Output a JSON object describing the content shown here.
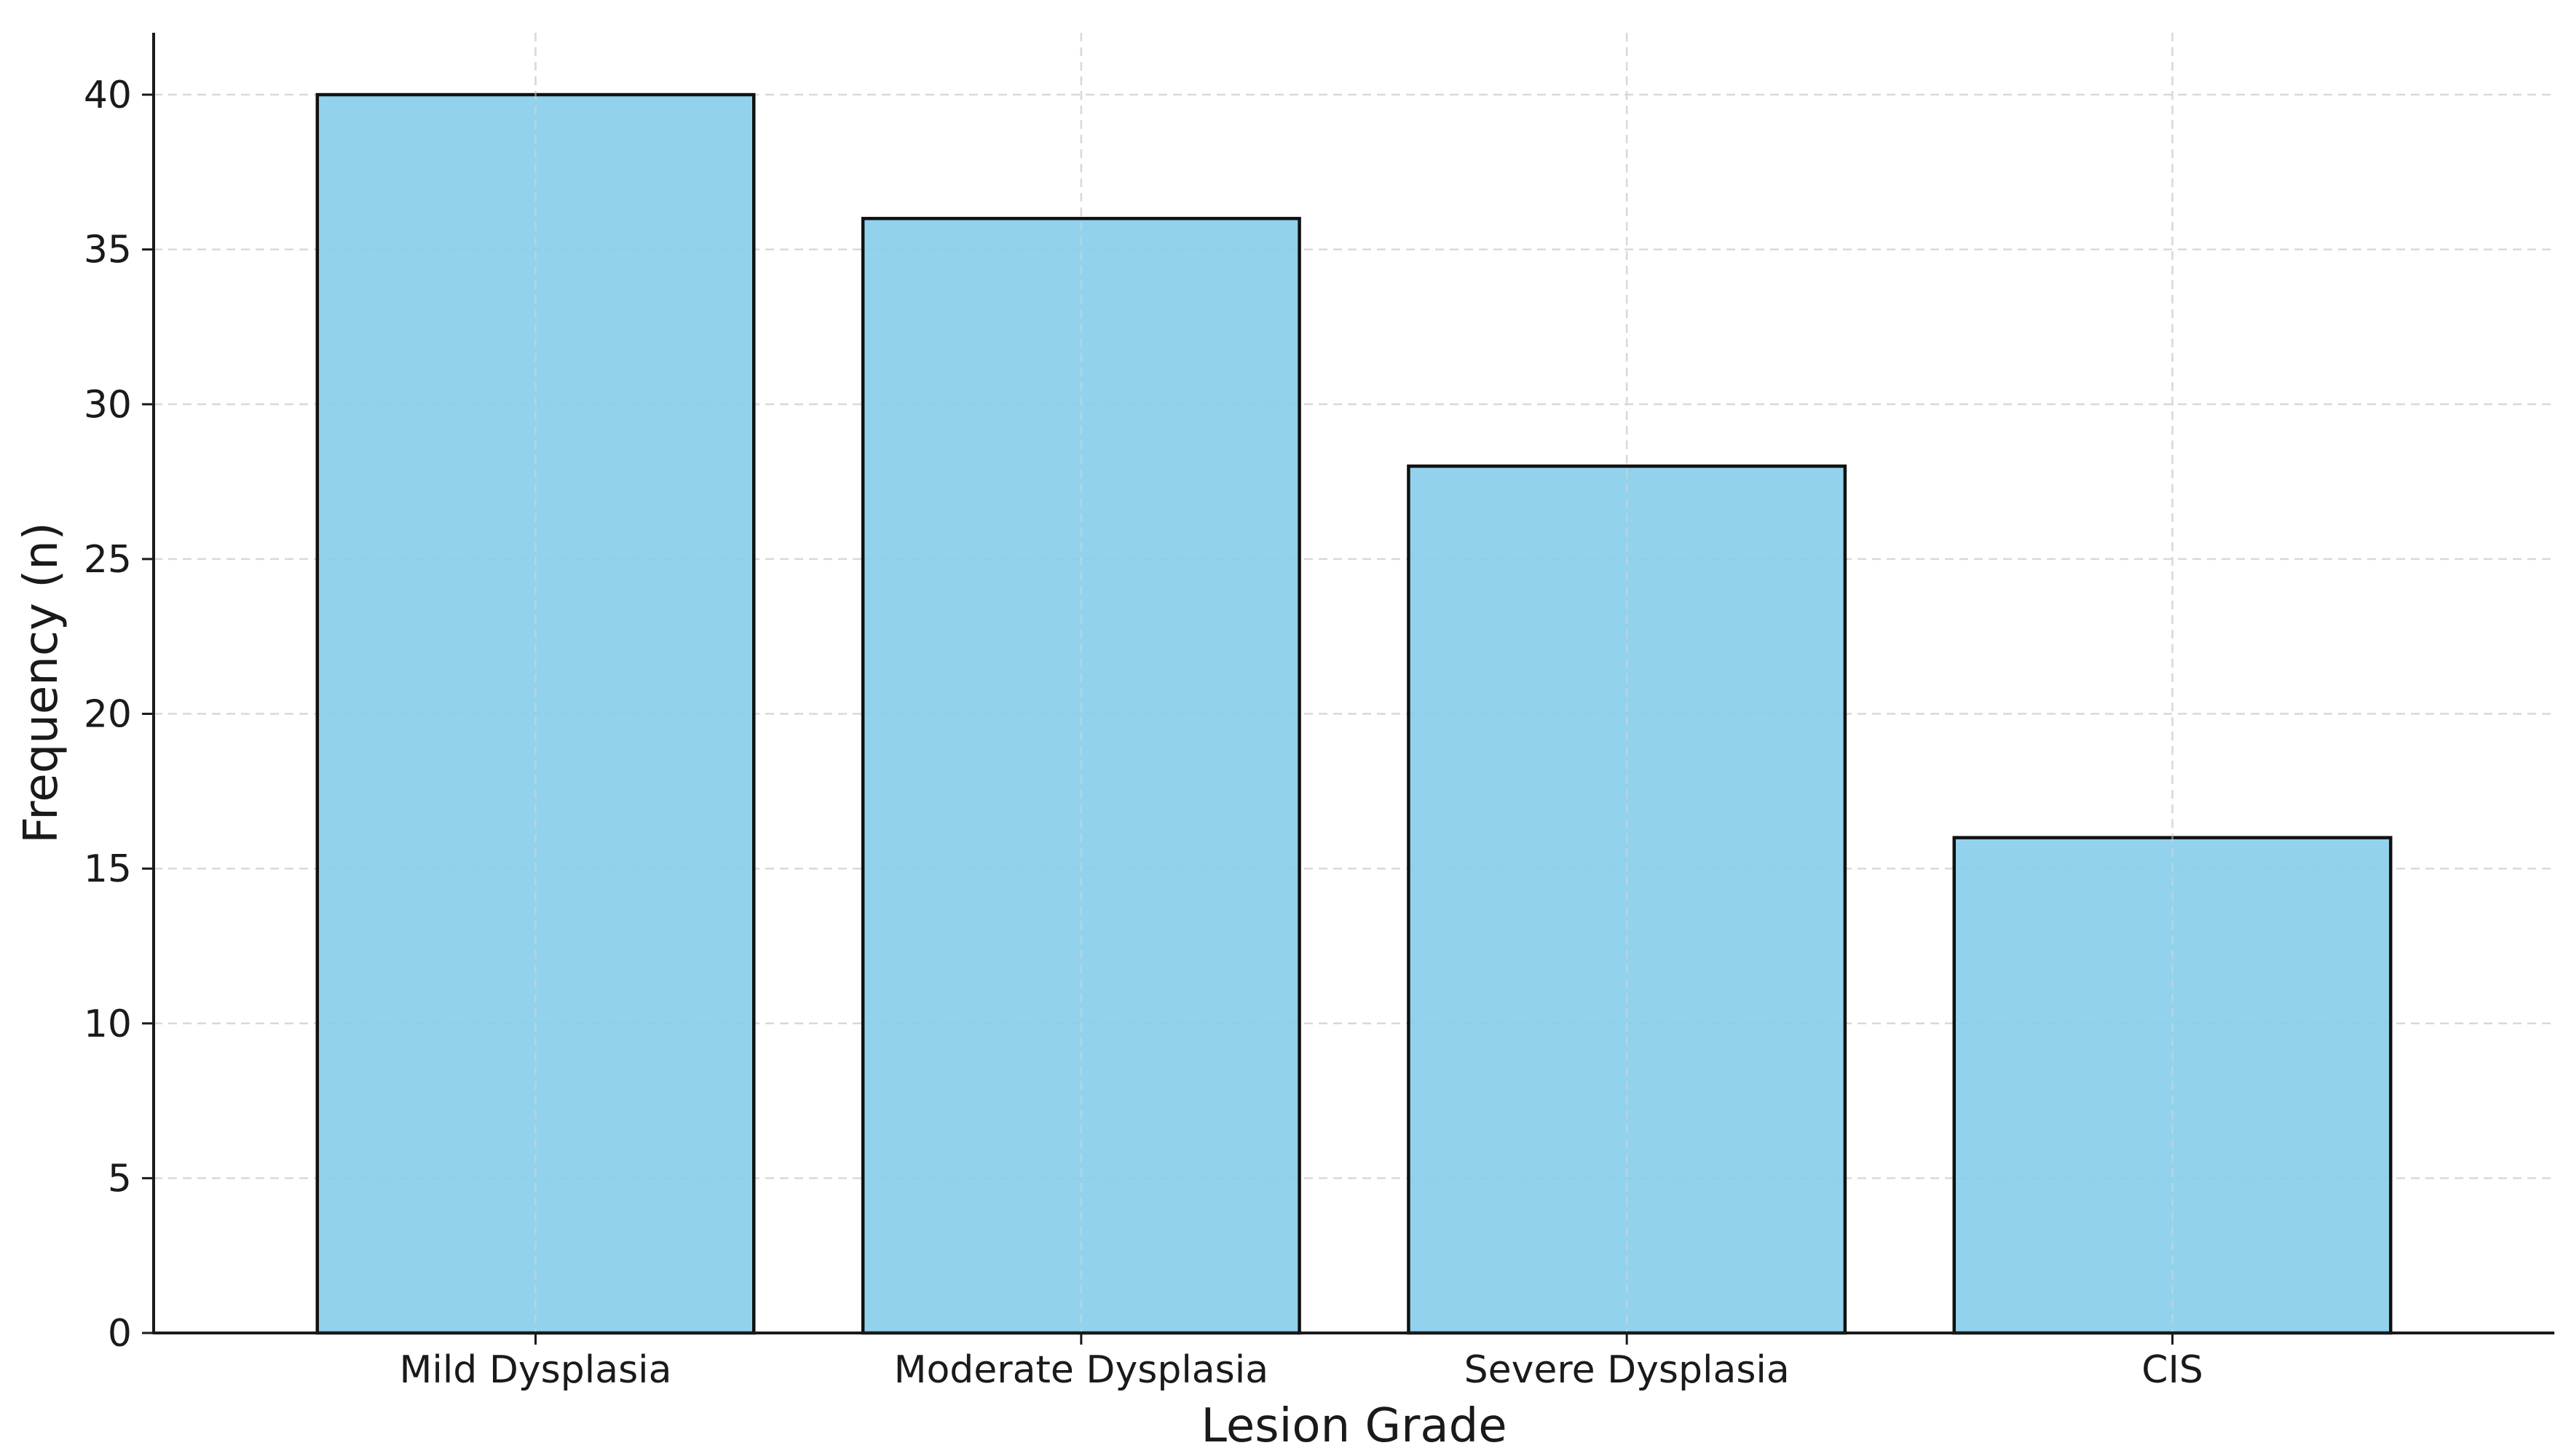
{
  "chart_data": {
    "type": "bar",
    "categories": [
      "Mild Dysplasia",
      "Moderate Dysplasia",
      "Severe Dysplasia",
      "CIS"
    ],
    "values": [
      40,
      36,
      28,
      16
    ],
    "title": "",
    "xlabel": "Lesion Grade",
    "ylabel": "Frequency (n)",
    "ylim": [
      0,
      42
    ],
    "yticks": [
      0,
      5,
      10,
      15,
      20,
      25,
      30,
      35,
      40
    ],
    "grid": true,
    "legend": "none",
    "colors": {
      "bar_fill": "#89ceea",
      "bar_edge": "#111111",
      "grid": "#d9d9d9",
      "axis": "#1a1a1a"
    }
  }
}
